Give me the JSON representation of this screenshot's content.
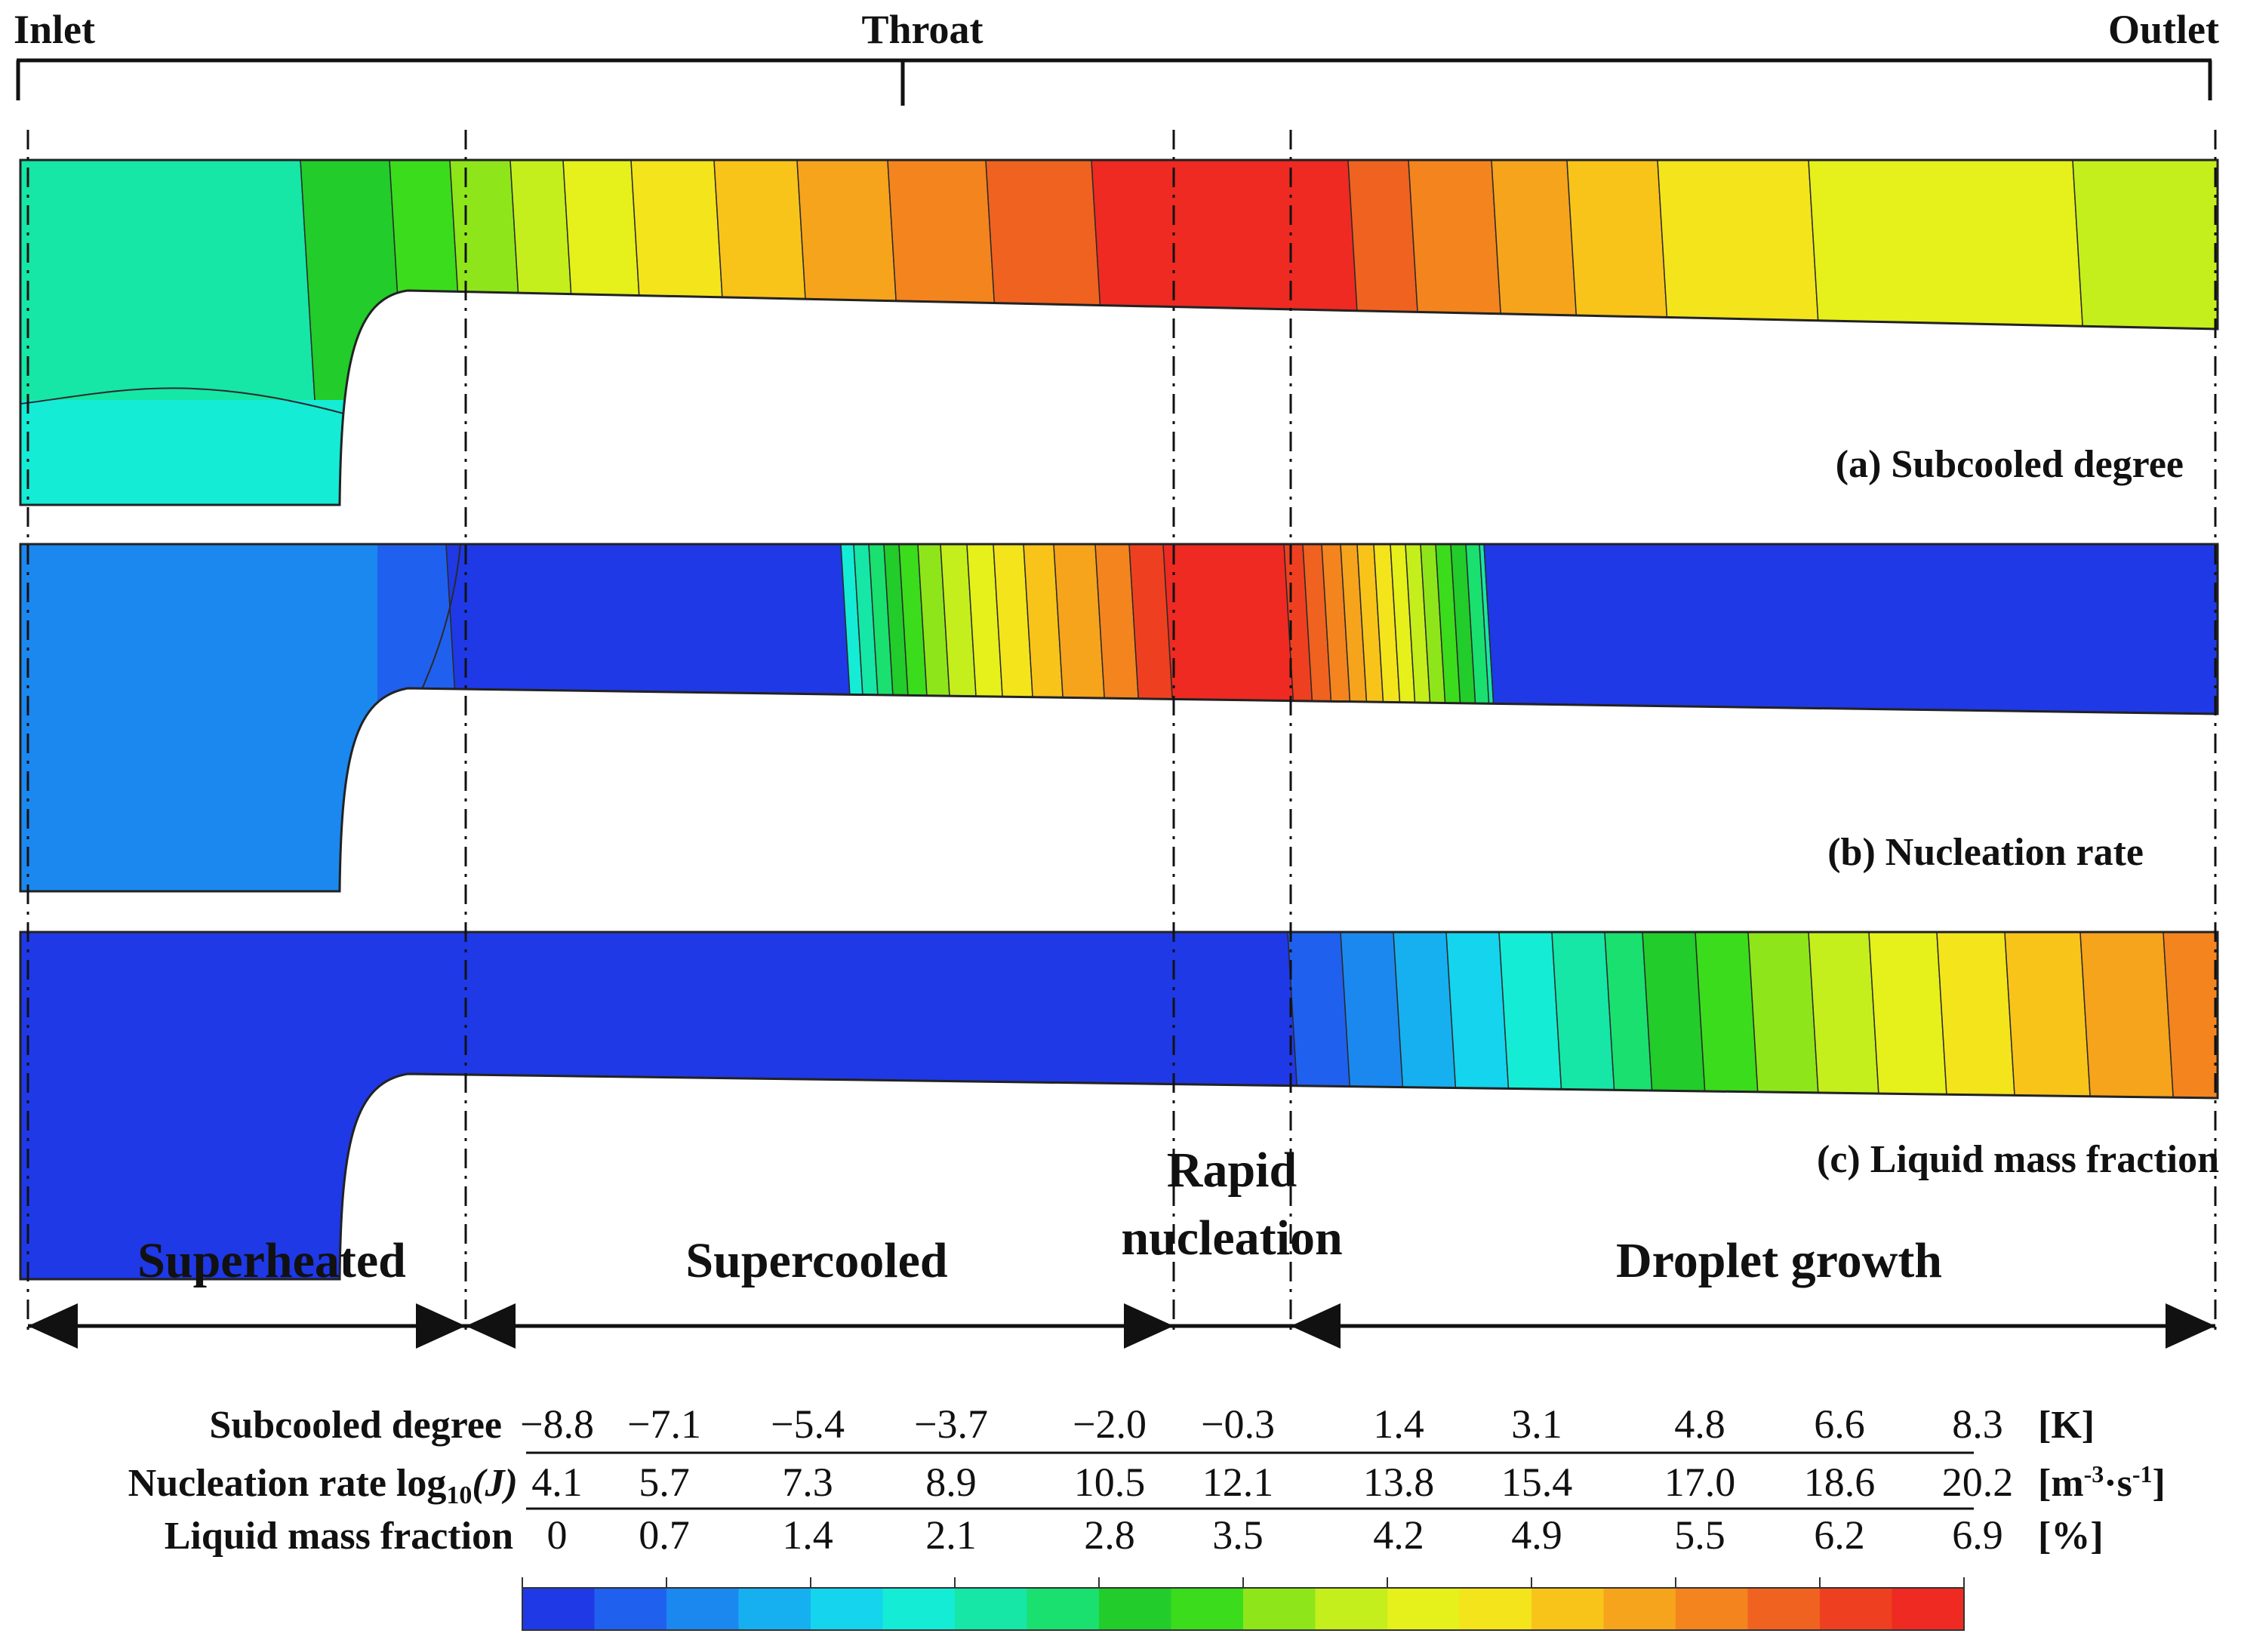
{
  "positions": {
    "inlet": "Inlet",
    "throat": "Throat",
    "outlet": "Outlet"
  },
  "panels": {
    "a": "(a) Subcooled degree",
    "b": "(b) Nucleation rate",
    "c": "(c) Liquid mass fraction"
  },
  "regions": {
    "superheated": "Superheated",
    "supercooled": "Supercooled",
    "rapid_line1": "Rapid",
    "rapid_line2": "nucleation",
    "droplet": "Droplet growth"
  },
  "legend": {
    "rows": [
      {
        "label": "Subcooled degree",
        "values": [
          "−8.8",
          "−7.1",
          "−5.4",
          "−3.7",
          "−2.0",
          "−0.3",
          "1.4",
          "3.1",
          "4.8",
          "6.6",
          "8.3"
        ],
        "unit": "[K]"
      },
      {
        "label": "Nucleation rate log",
        "label_sub": "10",
        "label_tail": "(J)",
        "values": [
          "4.1",
          "5.7",
          "7.3",
          "8.9",
          "10.5",
          "12.1",
          "13.8",
          "15.4",
          "17.0",
          "18.6",
          "20.2"
        ],
        "unit": "[m",
        "unit_sup1": "-3",
        "unit_mid": "·s",
        "unit_sup2": "-1",
        "unit_end": "]"
      },
      {
        "label": "Liquid mass fraction",
        "values": [
          "0",
          "0.7",
          "1.4",
          "2.1",
          "2.8",
          "3.5",
          "4.2",
          "4.9",
          "5.5",
          "6.2",
          "6.9"
        ],
        "unit": "[%]"
      }
    ],
    "colors": [
      "#1f39e6",
      "#2060ee",
      "#1b88ef",
      "#16b0f0",
      "#14d4ee",
      "#14ecd6",
      "#16e6a6",
      "#1ae070",
      "#22cc2a",
      "#3bdc1c",
      "#8ee61a",
      "#c4ef1c",
      "#e6f01a",
      "#f4e41c",
      "#f8c41a",
      "#f6a41c",
      "#f4841e",
      "#f06220",
      "#ee4020",
      "#ee2a22"
    ]
  }
}
